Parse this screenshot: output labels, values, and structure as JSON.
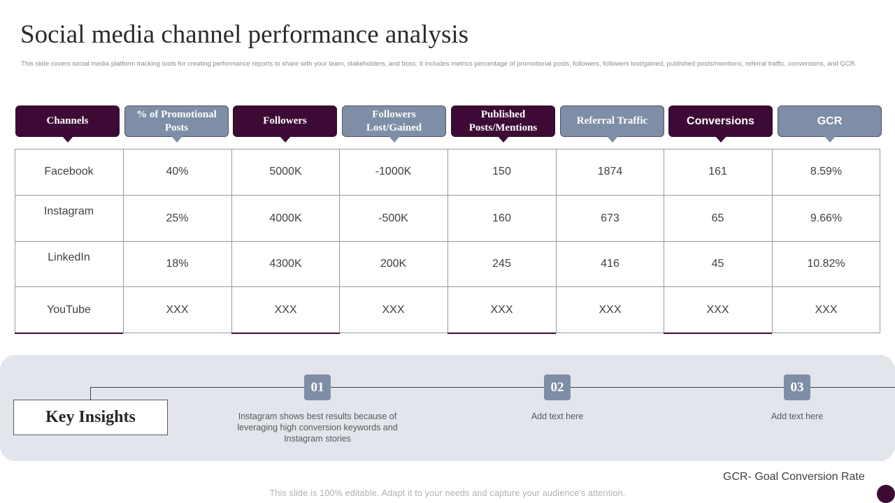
{
  "title": "Social media channel performance analysis",
  "subtitle": "This slide covers social media platform tracking tools for creating performance reports to share with your team, stakeholders, and boss. It includes metrics percentage of promotional posts, followers, followers lost/gained, published posts/mentions, referral traffic, conversions, and GCR.",
  "colors": {
    "dark_purple": "#3d0a35",
    "slate_blue": "#7e8ea6",
    "panel_grey": "#e3e5ec"
  },
  "table": {
    "headers": [
      {
        "label": "Channels",
        "style": "dark"
      },
      {
        "label": "% of Promotional Posts",
        "style": "grey"
      },
      {
        "label": "Followers",
        "style": "dark"
      },
      {
        "label": "Followers Lost/Gained",
        "style": "grey"
      },
      {
        "label": "Published Posts/Mentions",
        "style": "dark"
      },
      {
        "label": "Referral Traffic",
        "style": "grey"
      },
      {
        "label": "Conversions",
        "style": "dark"
      },
      {
        "label": "GCR",
        "style": "grey"
      }
    ],
    "rows": [
      [
        "Facebook",
        "40%",
        "5000K",
        "-1000K",
        "150",
        "1874",
        "161",
        "8.59%"
      ],
      [
        "Instagram",
        "25%",
        "4000K",
        "-500K",
        "160",
        "673",
        "65",
        "9.66%"
      ],
      [
        "LinkedIn",
        "18%",
        "4300K",
        "200K",
        "245",
        "416",
        "45",
        "10.82%"
      ],
      [
        "YouTube",
        "XXX",
        "XXX",
        "XXX",
        "XXX",
        "XXX",
        "XXX",
        "XXX"
      ]
    ]
  },
  "insights": {
    "heading": "Key Insights",
    "steps": [
      {
        "number": "01",
        "text": "Instagram shows best results because of leveraging  high conversion keywords and Instagram stories"
      },
      {
        "number": "02",
        "text": "Add text here"
      },
      {
        "number": "03",
        "text": "Add text here"
      }
    ]
  },
  "footnote": "GCR- Goal Conversion Rate",
  "footer_note": "This slide is 100% editable. Adapt it to your needs and capture your audience's attention."
}
